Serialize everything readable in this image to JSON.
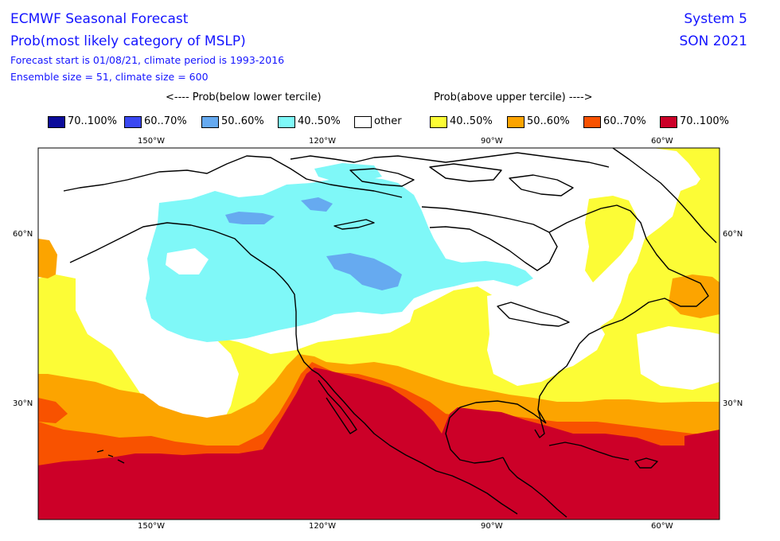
{
  "header": {
    "title_line1": "ECMWF Seasonal Forecast",
    "title_line2": "Prob(most likely category of MSLP)",
    "info_line1": "Forecast start is 01/08/21, climate period is 1993-2016",
    "info_line2": "Ensemble size = 51, climate size = 600",
    "system": "System 5",
    "season": "SON 2021"
  },
  "legend": {
    "below_header": "<---- Prob(below lower tercile)",
    "above_header": "Prob(above upper tercile) ---->",
    "items": [
      {
        "label": "70..100%",
        "color": "#0c0c9a"
      },
      {
        "label": "60..70%",
        "color": "#3a48f2"
      },
      {
        "label": "50..60%",
        "color": "#66aaf0"
      },
      {
        "label": "40..50%",
        "color": "#7ff8f8"
      },
      {
        "label": "other",
        "color": "#ffffff"
      },
      {
        "label": "40..50%",
        "color": "#fcfc36"
      },
      {
        "label": "50..60%",
        "color": "#fca400"
      },
      {
        "label": "60..70%",
        "color": "#f85200"
      },
      {
        "label": "70..100%",
        "color": "#cc0028"
      }
    ]
  },
  "axes": {
    "lon_ticks": [
      "150°W",
      "120°W",
      "90°W",
      "60°W"
    ],
    "lat_ticks": [
      "60°N",
      "30°N"
    ]
  }
}
